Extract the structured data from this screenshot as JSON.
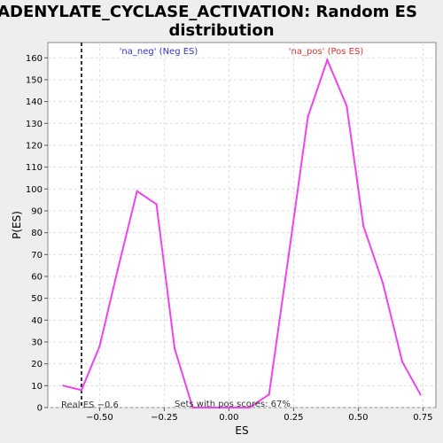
{
  "chart_data": {
    "type": "line",
    "title_line1": "ADENYLATE_CYCLASE_ACTIVATION: Random ES",
    "title_line2": "distribution",
    "xlabel": "ES",
    "ylabel": "P(ES)",
    "xlim": [
      -0.7,
      0.8
    ],
    "ylim": [
      0,
      167
    ],
    "x_ticks": [
      -0.5,
      -0.25,
      0.0,
      0.25,
      0.5,
      0.75
    ],
    "x_tick_labels": [
      "−0.50",
      "−0.25",
      "0.00",
      "0.25",
      "0.50",
      "0.75"
    ],
    "y_ticks": [
      0,
      10,
      20,
      30,
      40,
      50,
      60,
      70,
      80,
      90,
      100,
      110,
      120,
      130,
      140,
      150,
      160
    ],
    "grid": true,
    "series": [
      {
        "color": "#ee44ee",
        "x": [
          -0.64,
          -0.57,
          -0.5,
          -0.43,
          -0.355,
          -0.28,
          -0.21,
          -0.14,
          -0.07,
          0.0,
          0.08,
          0.155,
          0.23,
          0.305,
          0.38,
          0.455,
          0.52,
          0.595,
          0.67,
          0.74
        ],
        "y": [
          10,
          8,
          28,
          63,
          99,
          93,
          27,
          0,
          0,
          0,
          0,
          6,
          69,
          133,
          159,
          138,
          83,
          57,
          21,
          6
        ]
      }
    ],
    "vline": {
      "x": -0.57,
      "color": "#333333"
    },
    "annotations": {
      "neg_label": "'na_neg' (Neg ES)",
      "neg_color": "#3333cc",
      "pos_label": "'na_pos' (Pos ES)",
      "pos_color": "#dd3333",
      "real_es_label": "Real ES −0.6",
      "pos_scores_label": "Sets with pos scores: 67%",
      "text_color": "#333333"
    }
  }
}
